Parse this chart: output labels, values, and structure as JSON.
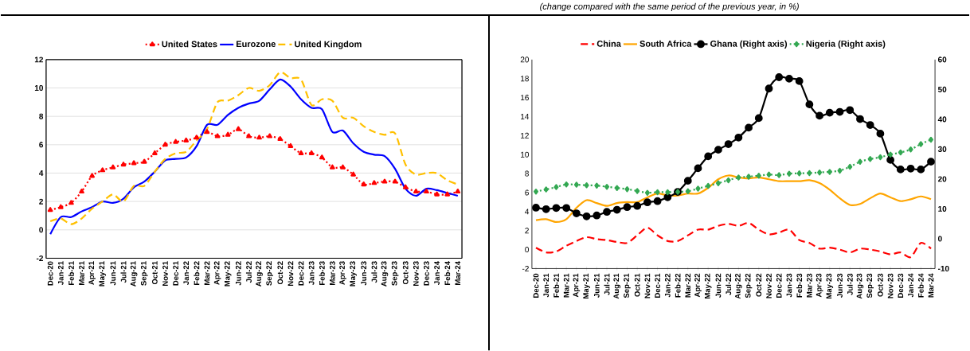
{
  "chart_data": [
    {
      "type": "line",
      "legend": "top",
      "grid": "y",
      "categories": [
        "Dec-20",
        "Jan-21",
        "Feb-21",
        "Mar-21",
        "Apr-21",
        "May-21",
        "Jun-21",
        "Jul-21",
        "Aug-21",
        "Sep-21",
        "Oct-21",
        "Nov-21",
        "Dec-21",
        "Jan-22",
        "Feb-22",
        "Mar-22",
        "Apr-22",
        "May-22",
        "Jun-22",
        "Jul-22",
        "Aug-22",
        "Sep-22",
        "Oct-22",
        "Nov-22",
        "Dec-22",
        "Jan-23",
        "Feb-23",
        "Mar-23",
        "Apr-23",
        "May-23",
        "Jun-23",
        "Jul-23",
        "Aug-23",
        "Sep-23",
        "Oct-23",
        "Nov-23",
        "Dec-23",
        "Jan-24",
        "Feb-24",
        "Mar-24"
      ],
      "ylim": [
        -2,
        12
      ],
      "yticks": [
        -2,
        0,
        2,
        4,
        6,
        8,
        10,
        12
      ],
      "series": [
        {
          "name": "United States",
          "color": "#ff0000",
          "marker": "triangle",
          "line_style": "dotted",
          "values": [
            1.4,
            1.6,
            1.9,
            2.7,
            3.8,
            4.2,
            4.4,
            4.6,
            4.7,
            4.8,
            5.4,
            6.0,
            6.2,
            6.3,
            6.5,
            6.9,
            6.6,
            6.7,
            7.1,
            6.6,
            6.5,
            6.6,
            6.4,
            5.9,
            5.4,
            5.4,
            5.1,
            4.4,
            4.4,
            3.9,
            3.2,
            3.3,
            3.4,
            3.4,
            3.0,
            2.7,
            2.7,
            2.5,
            2.5,
            2.7
          ]
        },
        {
          "name": "Eurozone",
          "color": "#0000ff",
          "marker": "none",
          "line_style": "solid",
          "values": [
            -0.3,
            0.9,
            0.9,
            1.3,
            1.6,
            2.0,
            1.9,
            2.2,
            3.0,
            3.4,
            4.1,
            4.9,
            5.0,
            5.1,
            5.9,
            7.4,
            7.4,
            8.1,
            8.6,
            8.9,
            9.1,
            9.9,
            10.6,
            10.1,
            9.2,
            8.6,
            8.5,
            6.9,
            7.0,
            6.1,
            5.5,
            5.3,
            5.2,
            4.3,
            2.9,
            2.4,
            2.9,
            2.8,
            2.6,
            2.4
          ]
        },
        {
          "name": "United Kingdom",
          "color": "#ffc000",
          "marker": "none",
          "line_style": "dashed",
          "values": [
            0.6,
            0.8,
            0.4,
            0.8,
            1.5,
            2.0,
            2.5,
            2.0,
            3.1,
            3.1,
            4.1,
            5.0,
            5.4,
            5.5,
            6.3,
            7.1,
            9.0,
            9.1,
            9.5,
            10.0,
            9.8,
            10.2,
            11.1,
            10.7,
            10.6,
            8.8,
            9.2,
            9.1,
            7.9,
            7.9,
            7.3,
            6.9,
            6.7,
            6.8,
            4.6,
            3.9,
            4.0,
            4.0,
            3.5,
            3.2
          ]
        }
      ]
    },
    {
      "type": "line",
      "legend": "top",
      "annotations": [
        "(change compared with the same period of the previous year, in %)"
      ],
      "categories": [
        "Dec-20",
        "Jan-21",
        "Feb-21",
        "Mar-21",
        "Apr-21",
        "May-21",
        "Jun-21",
        "Jul-21",
        "Aug-21",
        "Sep-21",
        "Oct-21",
        "Nov-21",
        "Dec-21",
        "Jan-22",
        "Feb-22",
        "Mar-22",
        "Apr-22",
        "May-22",
        "Jun-22",
        "Jul-22",
        "Aug-22",
        "Sep-22",
        "Oct-22",
        "Nov-22",
        "Dec-22",
        "Jan-23",
        "Feb-23",
        "Mar-23",
        "Apr-23",
        "May-23",
        "Jun-23",
        "Jul-23",
        "Aug-23",
        "Sep-23",
        "Oct-23",
        "Nov-23",
        "Dec-23",
        "Jan-24",
        "Feb-24",
        "Mar-24"
      ],
      "ylim": [
        -2,
        20
      ],
      "yticks": [
        -2,
        0,
        2,
        4,
        6,
        8,
        10,
        12,
        14,
        16,
        18,
        20
      ],
      "y2lim": [
        -10,
        60
      ],
      "y2ticks": [
        -10,
        0,
        10,
        20,
        30,
        40,
        50,
        60
      ],
      "series": [
        {
          "name": "China",
          "color": "#ff0000",
          "marker": "none",
          "line_style": "dashed",
          "values": [
            0.2,
            -0.3,
            -0.2,
            0.4,
            0.9,
            1.3,
            1.1,
            1.0,
            0.8,
            0.7,
            1.5,
            2.3,
            1.5,
            0.9,
            0.9,
            1.5,
            2.1,
            2.1,
            2.5,
            2.7,
            2.5,
            2.8,
            2.1,
            1.6,
            1.8,
            2.1,
            1.0,
            0.7,
            0.1,
            0.2,
            0.0,
            -0.3,
            0.1,
            0.0,
            -0.2,
            -0.5,
            -0.3,
            -0.8,
            0.7,
            0.1
          ]
        },
        {
          "name": "South Africa",
          "color": "#ffa500",
          "marker": "none",
          "line_style": "solid",
          "values": [
            3.1,
            3.2,
            2.9,
            3.2,
            4.4,
            5.2,
            4.9,
            4.6,
            4.9,
            5.0,
            5.0,
            5.5,
            5.9,
            5.7,
            5.7,
            5.9,
            5.9,
            6.5,
            7.4,
            7.8,
            7.6,
            7.5,
            7.6,
            7.4,
            7.2,
            7.2,
            7.2,
            7.3,
            7.0,
            6.3,
            5.4,
            4.7,
            4.8,
            5.4,
            5.9,
            5.5,
            5.1,
            5.3,
            5.6,
            5.3
          ]
        },
        {
          "name": "Ghana (Right axis)",
          "color": "#000000",
          "marker": "circle",
          "line_style": "solid",
          "axis": "y2",
          "values": [
            10.4,
            9.9,
            10.3,
            10.3,
            8.5,
            7.5,
            7.8,
            9.0,
            9.7,
            10.6,
            11.0,
            12.2,
            12.6,
            13.9,
            15.7,
            19.4,
            23.6,
            27.6,
            29.8,
            31.7,
            33.9,
            37.2,
            40.4,
            50.3,
            54.1,
            53.6,
            52.8,
            45.0,
            41.2,
            42.2,
            42.5,
            43.1,
            40.1,
            38.1,
            35.2,
            26.4,
            23.2,
            23.5,
            23.2,
            25.8
          ]
        },
        {
          "name": "Nigeria (Right axis)",
          "color": "#33a852",
          "marker": "diamond",
          "line_style": "dotted",
          "axis": "y2",
          "values": [
            15.8,
            16.5,
            17.3,
            18.2,
            18.1,
            17.9,
            17.8,
            17.4,
            17.0,
            16.6,
            16.0,
            15.4,
            15.6,
            15.6,
            15.7,
            15.9,
            16.8,
            17.7,
            18.6,
            19.6,
            20.5,
            20.8,
            21.1,
            21.5,
            21.3,
            21.8,
            21.9,
            22.0,
            22.2,
            22.4,
            22.8,
            24.1,
            25.8,
            26.7,
            27.3,
            28.2,
            28.9,
            29.9,
            31.7,
            33.2
          ]
        }
      ]
    }
  ]
}
